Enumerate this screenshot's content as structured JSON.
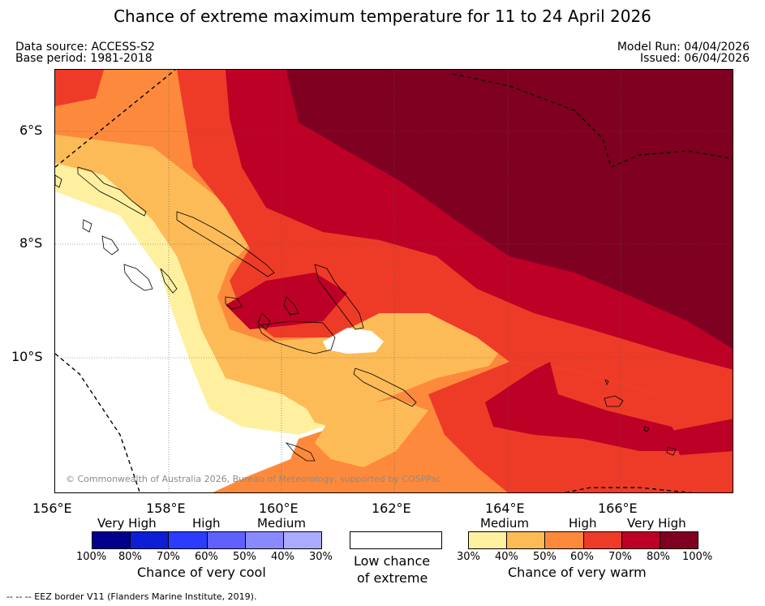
{
  "title": "Chance of extreme maximum temperature for 11 to 24 April 2026",
  "data_source": "Data source: ACCESS-S2",
  "base_period": "Base period: 1981-2018",
  "model_run": "Model Run: 04/04/2026",
  "issued": "Issued: 06/04/2026",
  "map": {
    "lat_labels": [
      "6°S",
      "8°S",
      "10°S"
    ],
    "lon_labels": [
      "156°E",
      "158°E",
      "160°E",
      "162°E",
      "164°E",
      "166°E"
    ],
    "copyright": "© Commonwealth of Australia 2026, Bureau of Meteorology, supported by COSPPac",
    "eez_note": "--  --  -- EEZ border V11 (Flanders Marine Institute, 2019).",
    "gridlines": true
  },
  "legend": {
    "cool": {
      "levels": [
        "Very High",
        "High",
        "Medium"
      ],
      "ticks": [
        "100%",
        "80%",
        "70%",
        "60%",
        "50%",
        "40%",
        "30%"
      ],
      "colors": [
        "#00008c",
        "#0c1fd6",
        "#2c3cff",
        "#6060ff",
        "#8a8aff",
        "#aaaaff"
      ],
      "name": "Chance of very cool"
    },
    "low": {
      "name_line1": "Low chance",
      "name_line2": "of extreme",
      "color": "#ffffff"
    },
    "warm": {
      "levels": [
        "Medium",
        "High",
        "Very High"
      ],
      "ticks": [
        "30%",
        "40%",
        "50%",
        "60%",
        "70%",
        "80%",
        "100%"
      ],
      "colors": [
        "#fff0a0",
        "#fdbb58",
        "#fd8a3c",
        "#ee3b28",
        "#bd0026",
        "#800021"
      ],
      "name": "Chance of very warm"
    }
  }
}
